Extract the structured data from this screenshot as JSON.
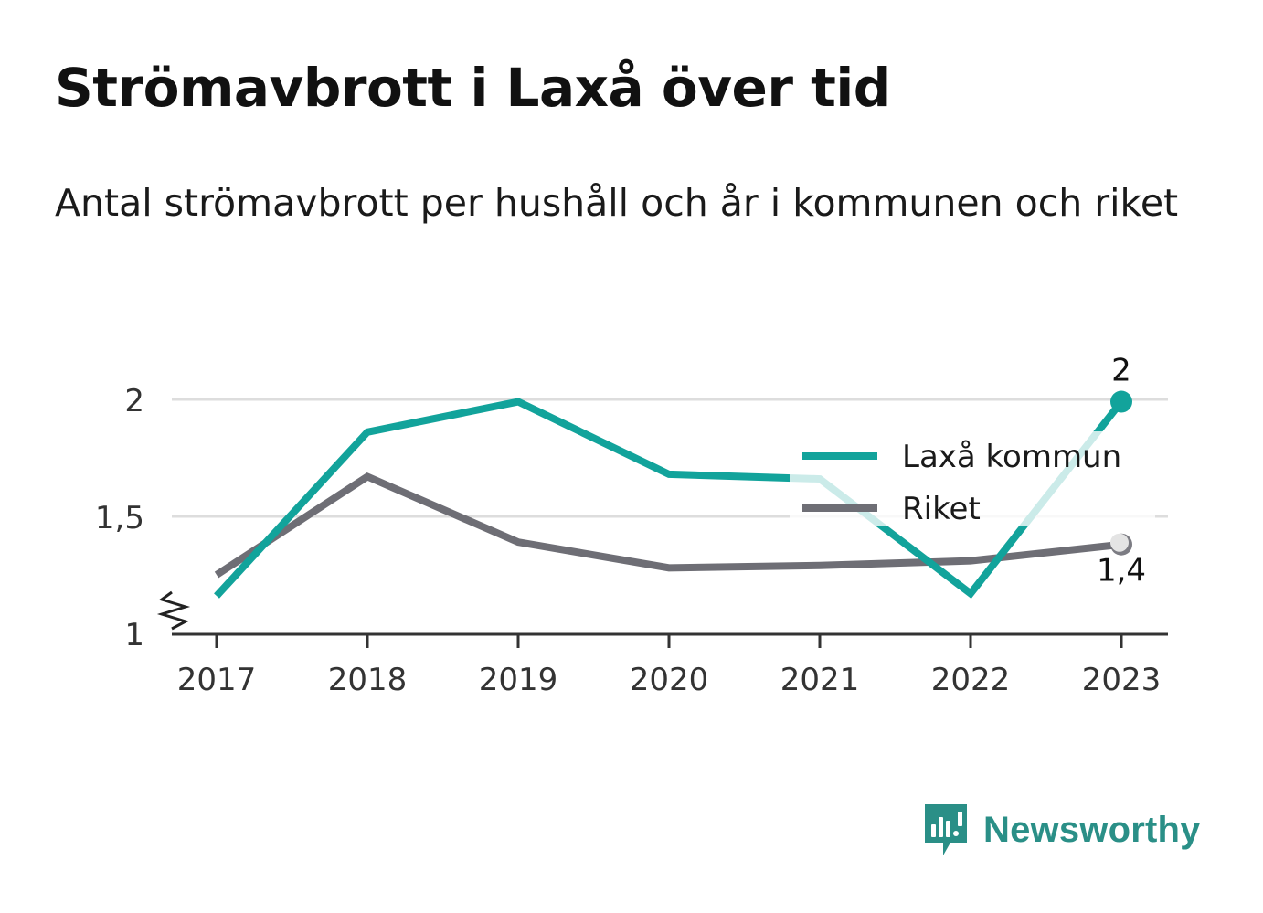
{
  "header": {
    "title": "Strömavbrott i Laxå över tid",
    "subtitle": "Antal strömavbrott per hushåll och år i kommunen och riket"
  },
  "brand": {
    "name": "Newsworthy",
    "icon": "newsworthy-logo-icon",
    "color": "#2a8f87"
  },
  "chart_data": {
    "type": "line",
    "title": "Strömavbrott i Laxå över tid",
    "subtitle": "Antal strömavbrott per hushåll och år i kommunen och riket",
    "x": [
      "2017",
      "2018",
      "2019",
      "2020",
      "2021",
      "2022",
      "2023"
    ],
    "y_ticks": [
      {
        "value": 1,
        "label": "1"
      },
      {
        "value": 1.5,
        "label": "1,5"
      },
      {
        "value": 2,
        "label": "2"
      }
    ],
    "ylim": [
      1,
      2.2
    ],
    "y_axis_break": true,
    "grid": true,
    "legend_position": "right",
    "series": [
      {
        "name": "Laxå kommun",
        "color": "#12a39b",
        "values": [
          1.16,
          1.86,
          1.99,
          1.68,
          1.66,
          1.17,
          1.99
        ],
        "end_label": "2"
      },
      {
        "name": "Riket",
        "color": "#6e6e75",
        "values": [
          1.25,
          1.67,
          1.39,
          1.28,
          1.29,
          1.31,
          1.38
        ],
        "end_label": "1,4"
      }
    ]
  }
}
